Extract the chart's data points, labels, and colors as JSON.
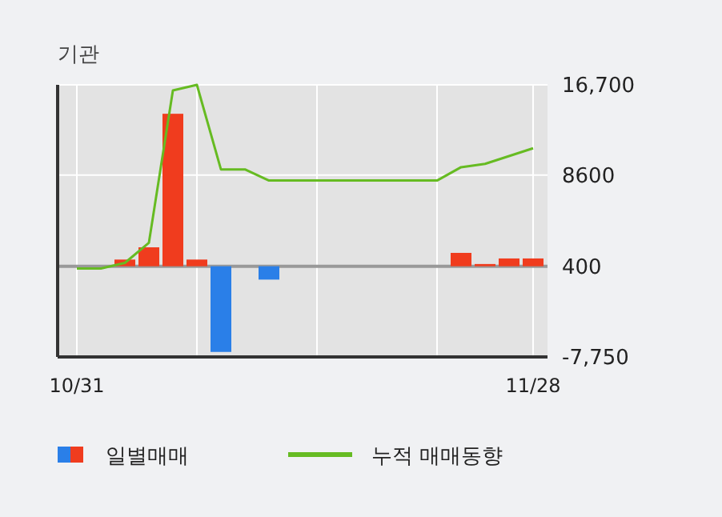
{
  "chart_data": {
    "type": "bar",
    "title": "기관",
    "categories": [
      "10/31",
      null,
      null,
      null,
      null,
      null,
      null,
      null,
      null,
      null,
      null,
      null,
      null,
      null,
      null,
      null,
      null,
      null,
      null,
      "11/28"
    ],
    "ylim": [
      -7750,
      16700
    ],
    "yticks": [
      {
        "value": -7750,
        "label": "-7,750"
      },
      400,
      8600,
      {
        "value": 16700,
        "label": "16,700"
      }
    ],
    "grid": true,
    "legend": "bottom",
    "ref_lines": [
      {
        "axis": "y",
        "value": 400,
        "color": "#999999"
      }
    ],
    "series": [
      {
        "name": "일별매매",
        "base": [
          null,
          null,
          400,
          400,
          400,
          400,
          400,
          null,
          400,
          null,
          null,
          null,
          null,
          null,
          null,
          null,
          400,
          400,
          400,
          400
        ],
        "values": [
          null,
          null,
          600,
          1700,
          13700,
          600,
          -7700,
          null,
          -1200,
          null,
          null,
          null,
          null,
          null,
          null,
          null,
          1200,
          200,
          700,
          700
        ],
        "colors": [
          "#f03c1e",
          "#f03c1e",
          "#f03c1e",
          "#f03c1e",
          "#f03c1e",
          "#f03c1e",
          "#2a7fe8",
          "#f03c1e",
          "#2a7fe8",
          "#f03c1e",
          "#f03c1e",
          "#f03c1e",
          "#f03c1e",
          "#f03c1e",
          "#f03c1e",
          "#f03c1e",
          "#f03c1e",
          "#f03c1e",
          "#f03c1e",
          "#f03c1e"
        ]
      },
      {
        "name": "누적 매매동향",
        "type": "line",
        "color": "#66bb22",
        "values": [
          200,
          200,
          700,
          2500,
          16200,
          16700,
          9100,
          9100,
          8100,
          8100,
          8100,
          8100,
          8100,
          8100,
          8100,
          8100,
          9300,
          9600,
          10300,
          11000
        ]
      }
    ]
  }
}
